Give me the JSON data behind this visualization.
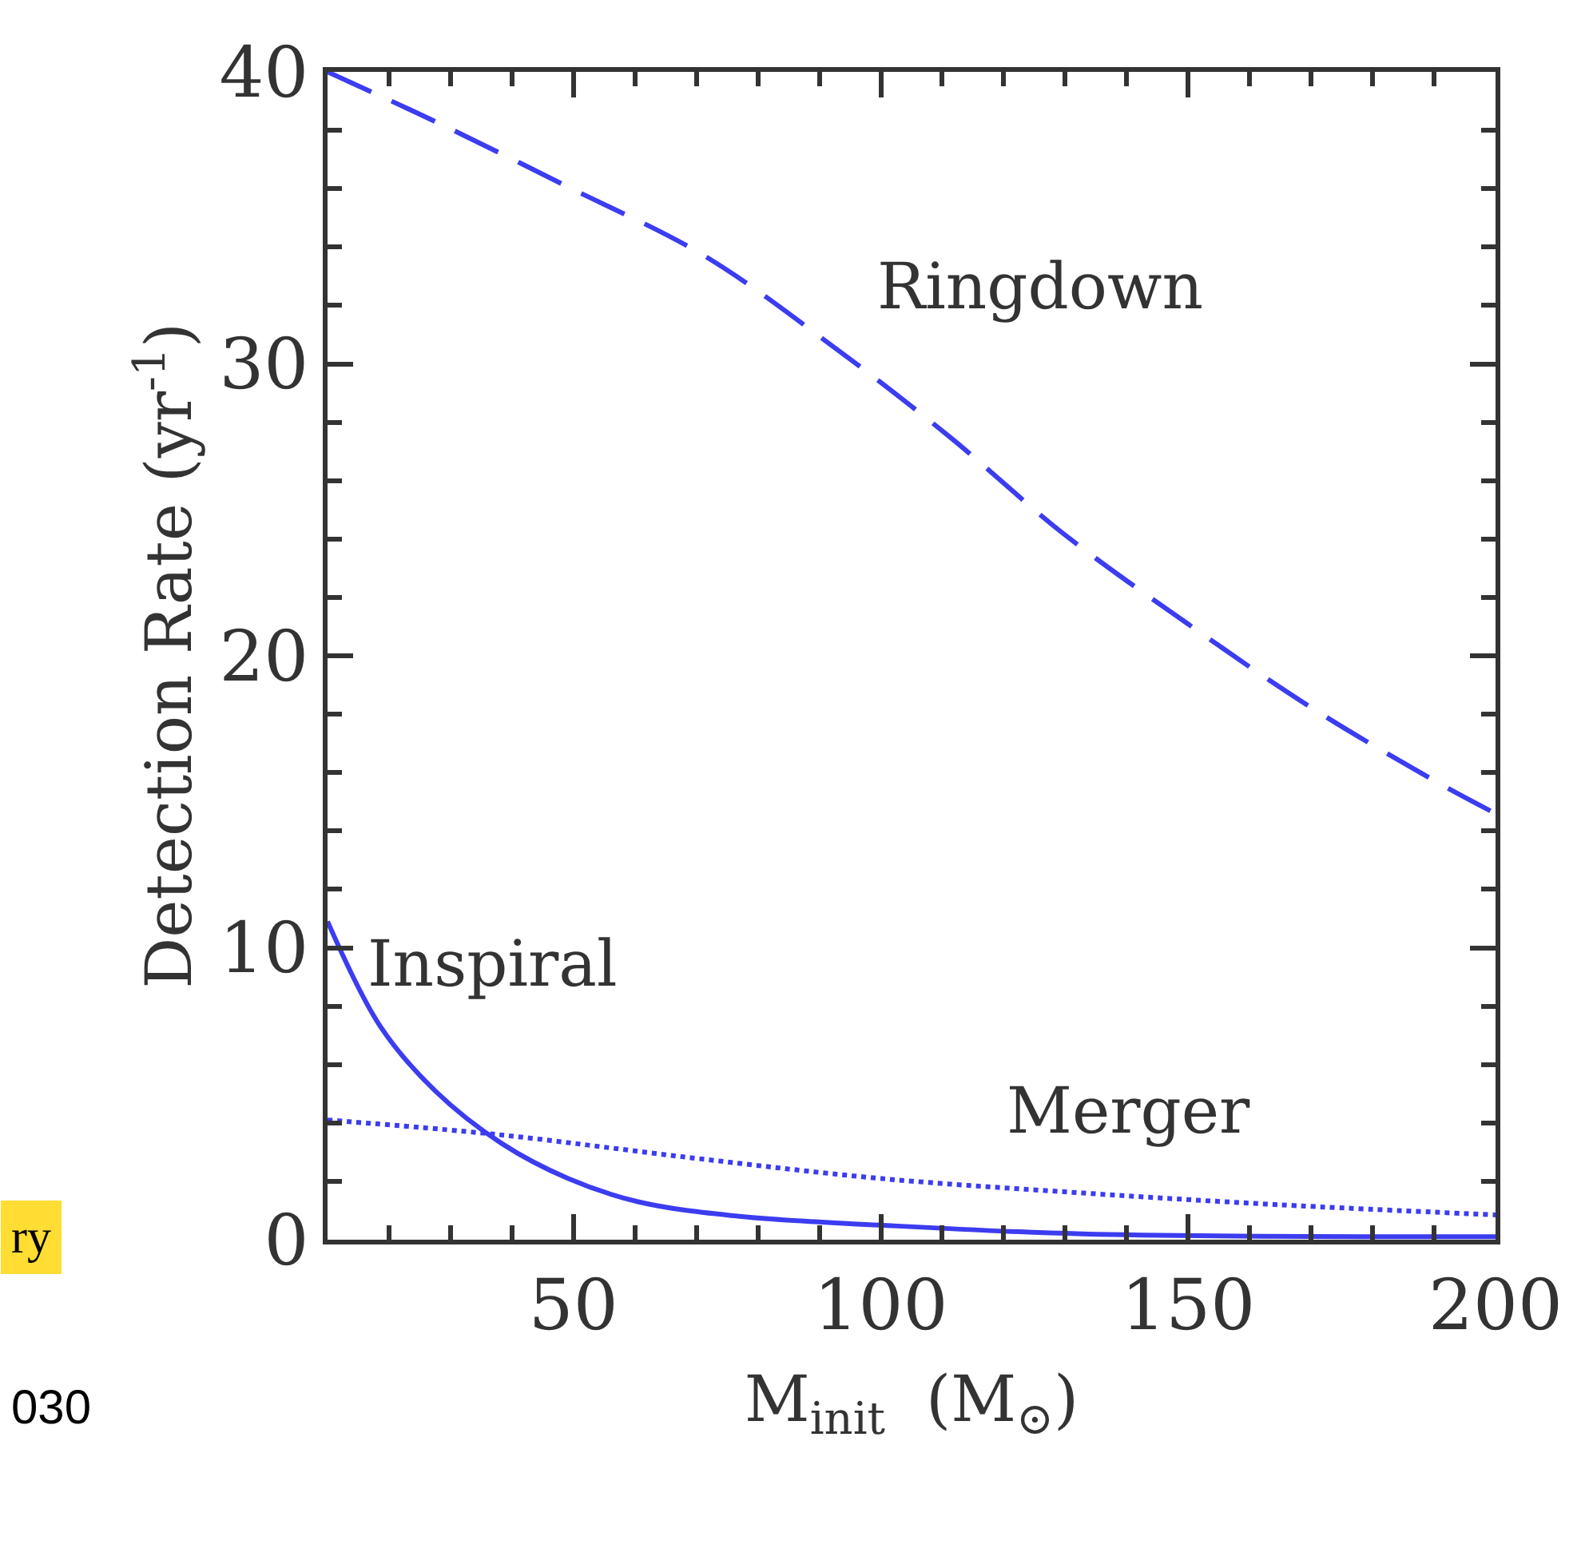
{
  "chart_data": {
    "type": "line",
    "xlabel": "M$_{init}$  (M$_{⊙}$)",
    "ylabel": "Detection Rate (yr$^{-1}$)",
    "xlim": [
      10,
      200
    ],
    "xticks": [
      50,
      100,
      150,
      200
    ],
    "ylim": [
      0,
      40
    ],
    "yticks": [
      0,
      10,
      20,
      30,
      40
    ],
    "grid": false,
    "series": [
      {
        "name": "Ringdown",
        "color": "#3c3cf0",
        "line_style": "dashed",
        "x": [
          10,
          27.5,
          49.7,
          71.3,
          92.2,
          111.2,
          129.6,
          149.9,
          170.2,
          191.1,
          200
        ],
        "values": [
          40,
          38.3,
          36.0,
          33.7,
          30.6,
          27.5,
          24.2,
          21.1,
          18.2,
          15.6,
          14.6
        ]
      },
      {
        "name": "Inspiral",
        "color": "#3c3cf0",
        "line_style": "solid",
        "x": [
          10,
          18.6,
          27.5,
          38.3,
          49.1,
          60.5,
          77,
          99.8,
          132.8,
          200
        ],
        "values": [
          10.9,
          7.3,
          5.1,
          3.3,
          2.1,
          1.3,
          0.8,
          0.5,
          0.2,
          0.1
        ]
      },
      {
        "name": "Merger",
        "color": "#3c3cf0",
        "line_style": "dotted",
        "x": [
          10,
          37.7,
          69.4,
          99.8,
          132.8,
          164.5,
          200
        ],
        "values": [
          4.1,
          3.6,
          2.8,
          2.1,
          1.6,
          1.2,
          0.85
        ]
      }
    ],
    "annotations": [
      "ry",
      "030"
    ]
  }
}
